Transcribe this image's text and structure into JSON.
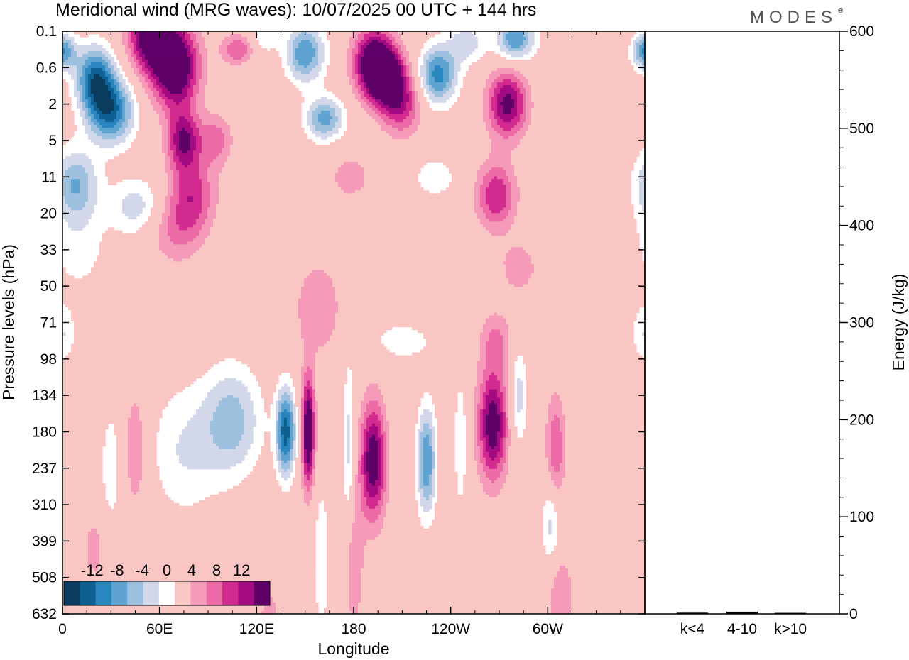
{
  "chart_data": {
    "type": "heatmap",
    "title": "Meridional wind (MRG waves):  10/07/2025  00 UTC  + 144 hrs",
    "brand": "MODES",
    "brand_mark": "®",
    "xlabel": "Longitude",
    "ylabel": "Pressure levels (hPa)",
    "xticks": [
      "0",
      "60E",
      "120E",
      "180",
      "120W",
      "60W"
    ],
    "yticks": [
      "0.1",
      "0.6",
      "2",
      "5",
      "11",
      "20",
      "33",
      "50",
      "71",
      "98",
      "134",
      "180",
      "237",
      "310",
      "399",
      "508",
      "632"
    ],
    "colorbar": {
      "ticks": [
        "-12",
        "-8",
        "-4",
        "0",
        "4",
        "8",
        "12"
      ],
      "levels": [
        -14,
        -12,
        -10,
        -8,
        -6,
        -4,
        -2,
        2,
        4,
        6,
        8,
        10,
        12,
        14
      ],
      "colors": [
        "#0b3b5e",
        "#0e5f92",
        "#2a86bf",
        "#5fa3d0",
        "#9ec0df",
        "#d3d7ea",
        "#ffffff",
        "#f9c6c4",
        "#f59ab9",
        "#ec6aa6",
        "#d32a90",
        "#a40b80",
        "#5f0069"
      ]
    },
    "field_blobs": [
      {
        "lon": 0,
        "lev": 0.55,
        "amp": -10,
        "wlon": 8,
        "wlev": 0.5
      },
      {
        "lon": 20,
        "lev": 1.3,
        "amp": -12,
        "wlon": 12,
        "wlev": 0.9
      },
      {
        "lon": 30,
        "lev": 2.2,
        "amp": -12,
        "wlon": 14,
        "wlev": 0.9
      },
      {
        "lon": 8,
        "lev": 4.2,
        "amp": -8,
        "wlon": 14,
        "wlev": 1.0
      },
      {
        "lon": 45,
        "lev": 4.8,
        "amp": -5,
        "wlon": 16,
        "wlev": 0.8
      },
      {
        "lon": 10,
        "lev": 6.0,
        "amp": -3,
        "wlon": 18,
        "wlev": 1.2
      },
      {
        "lon": 55,
        "lev": 0.1,
        "amp": 13,
        "wlon": 14,
        "wlev": 1.0
      },
      {
        "lon": 70,
        "lev": 1.0,
        "amp": 14,
        "wlon": 14,
        "wlev": 1.1
      },
      {
        "lon": 75,
        "lev": 3.0,
        "amp": 10,
        "wlon": 10,
        "wlev": 0.8
      },
      {
        "lon": 80,
        "lev": 4.5,
        "amp": 7,
        "wlon": 14,
        "wlev": 1.0
      },
      {
        "lon": 70,
        "lev": 5.5,
        "amp": 4,
        "wlon": 16,
        "wlev": 0.9
      },
      {
        "lon": 108,
        "lev": 0.5,
        "amp": 6,
        "wlon": 10,
        "wlev": 0.4
      },
      {
        "lon": 95,
        "lev": 3.0,
        "amp": 5,
        "wlon": 10,
        "wlev": 0.7
      },
      {
        "lon": 125,
        "lev": 0.1,
        "amp": -4,
        "wlon": 8,
        "wlev": 0.5
      },
      {
        "lon": 150,
        "lev": 0.6,
        "amp": -10,
        "wlon": 12,
        "wlev": 0.8
      },
      {
        "lon": 162,
        "lev": 2.4,
        "amp": -9,
        "wlon": 12,
        "wlev": 0.6
      },
      {
        "lon": 192,
        "lev": 0.8,
        "amp": 12,
        "wlon": 12,
        "wlev": 0.9
      },
      {
        "lon": 200,
        "lev": 1.3,
        "amp": 12,
        "wlon": 12,
        "wlev": 0.8
      },
      {
        "lon": 210,
        "lev": 2.0,
        "amp": 7,
        "wlon": 12,
        "wlev": 0.9
      },
      {
        "lon": 178,
        "lev": 4.0,
        "amp": 3,
        "wlon": 14,
        "wlev": 0.7
      },
      {
        "lon": 232,
        "lev": 1.2,
        "amp": -11,
        "wlon": 12,
        "wlev": 0.8
      },
      {
        "lon": 250,
        "lev": 0.3,
        "amp": -5,
        "wlon": 12,
        "wlev": 0.6
      },
      {
        "lon": 280,
        "lev": 0.2,
        "amp": -10,
        "wlon": 12,
        "wlev": 0.6
      },
      {
        "lon": 275,
        "lev": 2.0,
        "amp": 11,
        "wlon": 12,
        "wlev": 0.9
      },
      {
        "lon": 268,
        "lev": 4.5,
        "amp": 8,
        "wlon": 12,
        "wlev": 0.9
      },
      {
        "lon": 230,
        "lev": 4.0,
        "amp": -3,
        "wlon": 16,
        "wlev": 0.7
      },
      {
        "lon": 282,
        "lev": 6.5,
        "amp": 3,
        "wlon": 14,
        "wlev": 0.8
      },
      {
        "lon": 158,
        "lev": 7.6,
        "amp": 4,
        "wlon": 14,
        "wlev": 1.3
      },
      {
        "lon": 0,
        "lev": 8.3,
        "amp": -4,
        "wlon": 8,
        "wlev": 0.8
      },
      {
        "lon": 210,
        "lev": 8.5,
        "amp": -3,
        "wlon": 22,
        "wlev": 0.6
      },
      {
        "lon": 268,
        "lev": 8.5,
        "amp": 4,
        "wlon": 10,
        "wlev": 0.8
      },
      {
        "lon": 105,
        "lev": 10.7,
        "amp": -7,
        "wlon": 18,
        "wlev": 1.5
      },
      {
        "lon": 138,
        "lev": 11.0,
        "amp": -13,
        "wlon": 6,
        "wlev": 1.2
      },
      {
        "lon": 75,
        "lev": 11.5,
        "amp": -4,
        "wlon": 22,
        "wlev": 1.8
      },
      {
        "lon": 152,
        "lev": 11.0,
        "amp": 14,
        "wlon": 4,
        "wlev": 1.5
      },
      {
        "lon": 177,
        "lev": 11.5,
        "amp": -5,
        "wlon": 4,
        "wlev": 2.5
      },
      {
        "lon": 192,
        "lev": 11.8,
        "amp": 12,
        "wlon": 8,
        "wlev": 1.6
      },
      {
        "lon": 225,
        "lev": 11.8,
        "amp": -10,
        "wlon": 6,
        "wlev": 1.5
      },
      {
        "lon": 246,
        "lev": 11.3,
        "amp": -4,
        "wlon": 4,
        "wlev": 1.8
      },
      {
        "lon": 266,
        "lev": 10.8,
        "amp": 12,
        "wlon": 9,
        "wlev": 1.5
      },
      {
        "lon": 282,
        "lev": 10.0,
        "amp": -5,
        "wlon": 5,
        "wlev": 1.4
      },
      {
        "lon": 305,
        "lev": 11.5,
        "amp": 6,
        "wlon": 6,
        "wlev": 1.5
      },
      {
        "lon": 302,
        "lev": 13.5,
        "amp": -5,
        "wlon": 6,
        "wlev": 1.2
      },
      {
        "lon": 45,
        "lev": 11.5,
        "amp": 4,
        "wlon": 8,
        "wlev": 1.8
      },
      {
        "lon": 30,
        "lev": 12.0,
        "amp": -3,
        "wlon": 8,
        "wlev": 2.0
      },
      {
        "lon": 160,
        "lev": 14.5,
        "amp": -4,
        "wlon": 5,
        "wlev": 2.0
      },
      {
        "lon": 180,
        "lev": 14.5,
        "amp": 4,
        "wlon": 6,
        "wlev": 2.0
      },
      {
        "lon": 128,
        "lev": 16.5,
        "amp": 4,
        "wlon": 6,
        "wlev": 1.2
      },
      {
        "lon": 308,
        "lev": 15.5,
        "amp": 4,
        "wlon": 8,
        "wlev": 1.2
      },
      {
        "lon": 20,
        "lev": 14.2,
        "amp": 3,
        "wlon": 8,
        "wlev": 1.0
      }
    ]
  },
  "energy_panel": {
    "ylabel": "Energy (J/kg)",
    "yticks": [
      "0",
      "100",
      "200",
      "300",
      "400",
      "500",
      "600"
    ],
    "ymin": 0,
    "ymax": 600,
    "categories": [
      "k<4",
      "4-10",
      "k>10"
    ],
    "values": [
      0.5,
      1.5,
      0.3
    ]
  }
}
